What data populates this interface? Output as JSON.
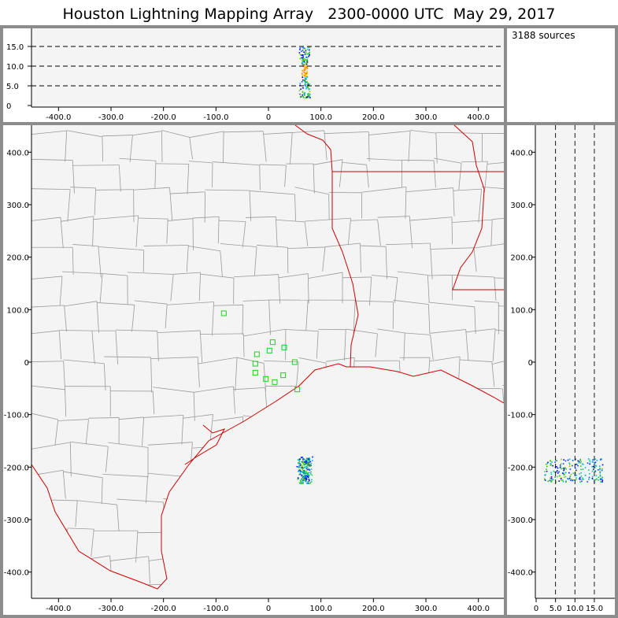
{
  "title": "Houston Lightning Mapping Array   2300-0000 UTC  May 29, 2017",
  "source_count": "3188 sources",
  "axes": {
    "x_ticks": [
      "-400.0",
      "-300.0",
      "-200.0",
      "-100.0",
      "0",
      "100.0",
      "200.0",
      "300.0",
      "400.0"
    ],
    "y_ticks": [
      "400.0",
      "300.0",
      "200.0",
      "100.0",
      "0",
      "-100.0",
      "-200.0",
      "-300.0",
      "-400.0"
    ],
    "alt_ticks_top": [
      "15.0",
      "10.0",
      "5.0",
      "0"
    ],
    "alt_ticks_side": [
      "0",
      "5.0",
      "10.0",
      "15.0"
    ]
  },
  "colors": {
    "frame": "#8c8c8c",
    "plot_bg": "#f4f4f4",
    "county_lines": "#9a9a9a",
    "state_coast_lines": "#cc0000",
    "stations": "#22cc22"
  },
  "stations": [
    {
      "x": -85,
      "y": 93
    },
    {
      "x": -22,
      "y": 15
    },
    {
      "x": -25,
      "y": -3
    },
    {
      "x": -25,
      "y": -20
    },
    {
      "x": -5,
      "y": -32
    },
    {
      "x": 2,
      "y": 22
    },
    {
      "x": 8,
      "y": 38
    },
    {
      "x": 12,
      "y": -38
    },
    {
      "x": 30,
      "y": 28
    },
    {
      "x": 28,
      "y": -25
    },
    {
      "x": 50,
      "y": 0
    },
    {
      "x": 55,
      "y": -52
    }
  ],
  "lightning": {
    "center_x_km": 68,
    "center_y_km": -205,
    "altitude_range_km": [
      2,
      15
    ]
  }
}
